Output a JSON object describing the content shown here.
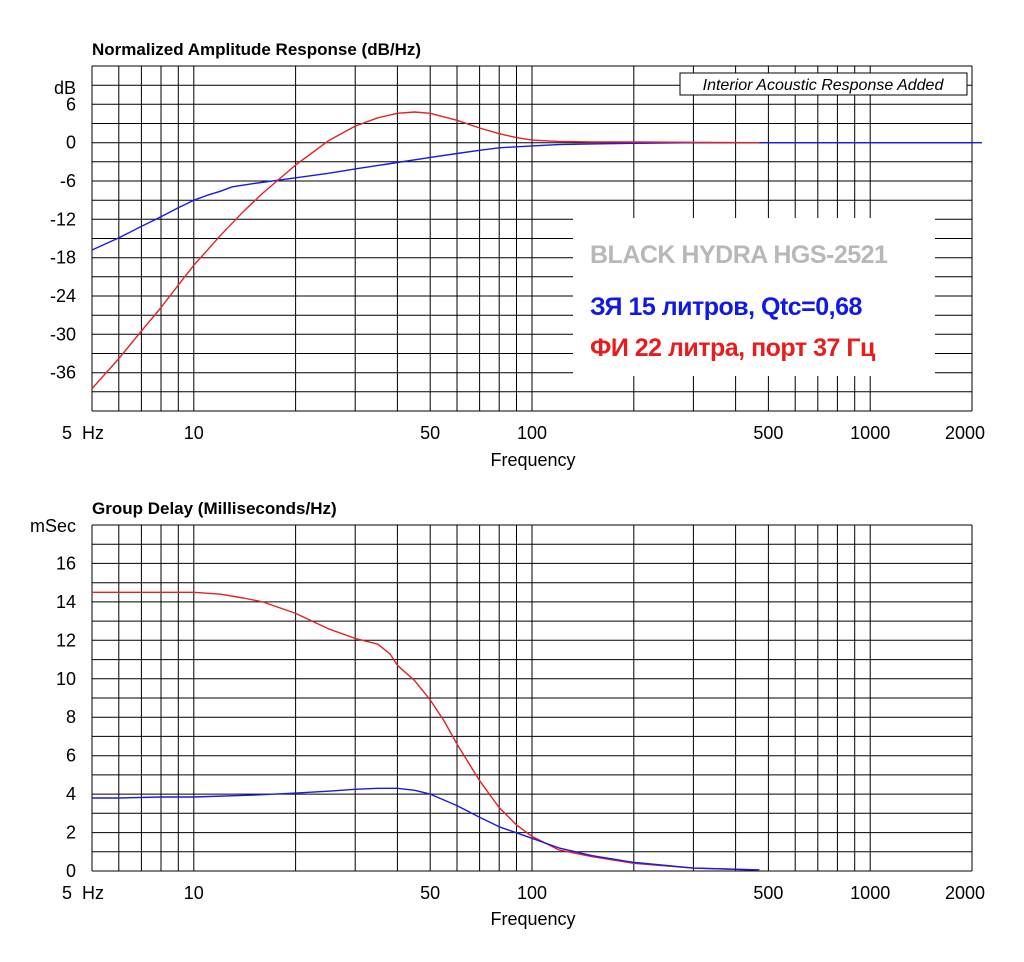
{
  "colors": {
    "closed_box": "#1a1ae6",
    "ported": "#e32222",
    "grid": "#000000"
  },
  "overlay": {
    "model": "BLACK HYDRA HGS-2521",
    "closed_box": "ЗЯ 15 литров, Qtc=0,68",
    "ported": "ФИ 22 литра, порт 37 Гц"
  },
  "chart_data": [
    {
      "type": "line",
      "title": "Normalized Amplitude Response (dB/Hz)",
      "annotation": "Interior Acoustic Response Added",
      "xlabel": "Frequency",
      "ylabel": "dB",
      "x_scale": "log",
      "xlim": [
        5,
        2000
      ],
      "ylim": [
        -42,
        12
      ],
      "x_tick_labels": [
        "5  Hz",
        "10",
        "50",
        "100",
        "500",
        "1000",
        "2000"
      ],
      "x_tick_values": [
        5,
        10,
        50,
        100,
        500,
        1000,
        2000
      ],
      "y_tick_labels": [
        "6",
        "0",
        "-6",
        "-12",
        "-18",
        "-24",
        "-30",
        "-36"
      ],
      "y_tick_values": [
        6,
        0,
        -6,
        -12,
        -18,
        -24,
        -30,
        -36
      ],
      "grid": true,
      "series": [
        {
          "color_key": "closed_box",
          "x": [
            5,
            6,
            7,
            8,
            9,
            10,
            11,
            12,
            13,
            15,
            20,
            25,
            30,
            40,
            50,
            60,
            70,
            80,
            100,
            120,
            150,
            200,
            300,
            2000
          ],
          "y": [
            -16.8,
            -14.9,
            -13.1,
            -11.6,
            -10.2,
            -9.0,
            -8.2,
            -7.6,
            -6.9,
            -6.4,
            -5.5,
            -4.8,
            -4.1,
            -3.1,
            -2.3,
            -1.7,
            -1.2,
            -0.8,
            -0.5,
            -0.3,
            -0.2,
            -0.1,
            0,
            0
          ]
        },
        {
          "color_key": "ported",
          "x": [
            5,
            6,
            7,
            8,
            9,
            10,
            12,
            14,
            16,
            20,
            25,
            30,
            35,
            40,
            45,
            50,
            60,
            70,
            80,
            90,
            100,
            110,
            120,
            150,
            200,
            300,
            470
          ],
          "y": [
            -38.5,
            -33.8,
            -29.5,
            -25.8,
            -22.3,
            -19.2,
            -14.5,
            -10.8,
            -7.9,
            -3.5,
            0.3,
            2.6,
            3.9,
            4.6,
            4.8,
            4.6,
            3.5,
            2.3,
            1.4,
            0.8,
            0.4,
            0.3,
            0.2,
            0.1,
            0.1,
            0.05,
            0.0
          ]
        }
      ]
    },
    {
      "type": "line",
      "title": "Group Delay (Milliseconds/Hz)",
      "xlabel": "Frequency",
      "ylabel": "mSec",
      "x_scale": "log",
      "xlim": [
        5,
        2000
      ],
      "ylim": [
        0,
        18
      ],
      "x_tick_labels": [
        "5  Hz",
        "10",
        "50",
        "100",
        "500",
        "1000",
        "2000"
      ],
      "x_tick_values": [
        5,
        10,
        50,
        100,
        500,
        1000,
        2000
      ],
      "y_tick_labels": [
        "16",
        "14",
        "12",
        "10",
        "8",
        "6",
        "4",
        "2",
        "0"
      ],
      "y_tick_values": [
        16,
        14,
        12,
        10,
        8,
        6,
        4,
        2,
        0
      ],
      "grid": true,
      "series": [
        {
          "color_key": "ported",
          "x": [
            5,
            6,
            8,
            10,
            12,
            14,
            16,
            20,
            25,
            30,
            35,
            38,
            40,
            45,
            50,
            55,
            60,
            70,
            80,
            90,
            100,
            120,
            150,
            200,
            300,
            470
          ],
          "y": [
            14.5,
            14.5,
            14.5,
            14.5,
            14.4,
            14.2,
            14.0,
            13.4,
            12.6,
            12.1,
            11.8,
            11.3,
            10.7,
            9.9,
            8.9,
            7.8,
            6.6,
            4.7,
            3.3,
            2.4,
            1.8,
            1.1,
            0.75,
            0.4,
            0.15,
            0.05
          ]
        },
        {
          "color_key": "closed_box",
          "x": [
            5,
            6,
            8,
            10,
            15,
            20,
            25,
            30,
            35,
            40,
            45,
            50,
            60,
            70,
            80,
            100,
            120,
            150,
            200,
            300,
            470
          ],
          "y": [
            3.8,
            3.8,
            3.85,
            3.85,
            3.95,
            4.05,
            4.15,
            4.25,
            4.3,
            4.3,
            4.2,
            4.0,
            3.4,
            2.8,
            2.3,
            1.7,
            1.2,
            0.8,
            0.45,
            0.15,
            0.05
          ]
        }
      ]
    }
  ]
}
